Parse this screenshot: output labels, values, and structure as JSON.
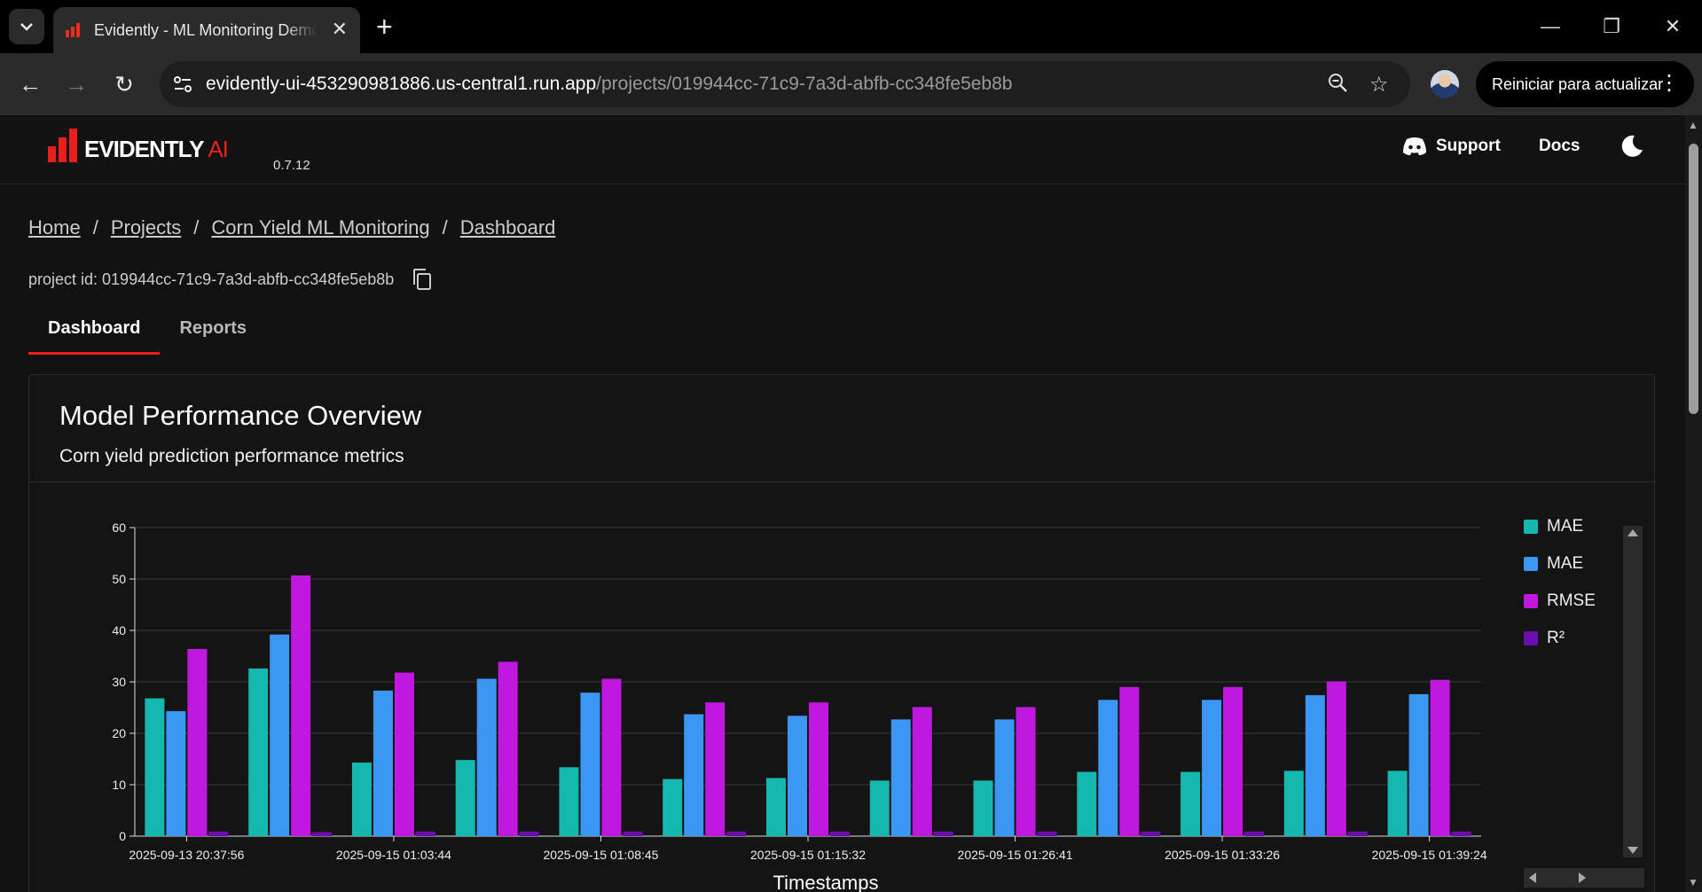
{
  "browser": {
    "tab_title": "Evidently - ML Monitoring Demo",
    "url_host": "evidently-ui-453290981886.us-central1.run.app",
    "url_path": "/projects/019944cc-71c9-7a3d-abfb-cc348fe5eb8b",
    "restart_label": "Reiniciar para actualizar"
  },
  "header": {
    "logo_main": "EVIDENTLY",
    "logo_ai": " AI",
    "version": "0.7.12",
    "support_label": "Support",
    "docs_label": "Docs"
  },
  "breadcrumb": [
    "Home",
    "Projects",
    "Corn Yield ML Monitoring",
    "Dashboard"
  ],
  "project": {
    "id_text": "project id: 019944cc-71c9-7a3d-abfb-cc348fe5eb8b"
  },
  "tabs": [
    {
      "label": "Dashboard",
      "active": true
    },
    {
      "label": "Reports",
      "active": false
    }
  ],
  "panel": {
    "title": "Model Performance Overview",
    "subtitle": "Corn yield prediction performance metrics"
  },
  "colors": {
    "accent": "#e8201c",
    "mae1": "#14b8ae",
    "mae2": "#3b97f3",
    "rmse": "#c118e0",
    "r2": "#6a0dad"
  },
  "chart_data": {
    "type": "bar",
    "xlabel": "Timestamps",
    "ylabel": "",
    "ylim": [
      0,
      60
    ],
    "yticks": [
      0,
      10,
      20,
      30,
      40,
      50,
      60
    ],
    "x_tick_labels": [
      "2025-09-13 20:37:56",
      "2025-09-15 01:03:44",
      "2025-09-15 01:08:45",
      "2025-09-15 01:15:32",
      "2025-09-15 01:26:41",
      "2025-09-15 01:33:26",
      "2025-09-15 01:39:24"
    ],
    "grid": true,
    "legend": "right",
    "series": [
      {
        "name": "MAE",
        "color": "#14b8ae",
        "values": [
          26.8,
          32.6,
          14.3,
          14.8,
          13.4,
          11.1,
          11.3,
          10.8,
          10.8,
          12.5,
          12.5,
          12.7,
          12.7
        ]
      },
      {
        "name": "MAE",
        "color": "#3b97f3",
        "values": [
          24.3,
          39.2,
          28.3,
          30.6,
          27.9,
          23.7,
          23.4,
          22.7,
          22.7,
          26.5,
          26.5,
          27.4,
          27.6
        ]
      },
      {
        "name": "RMSE",
        "color": "#c118e0",
        "values": [
          36.4,
          50.7,
          31.8,
          33.9,
          30.6,
          26.0,
          26.0,
          25.1,
          25.1,
          29.0,
          29.0,
          30.1,
          30.4
        ]
      },
      {
        "name": "R²",
        "color": "#6a0dad",
        "values": [
          0.9,
          0.8,
          0.9,
          0.9,
          0.9,
          0.9,
          0.9,
          0.9,
          0.9,
          0.9,
          0.9,
          0.9,
          0.9
        ]
      }
    ]
  }
}
